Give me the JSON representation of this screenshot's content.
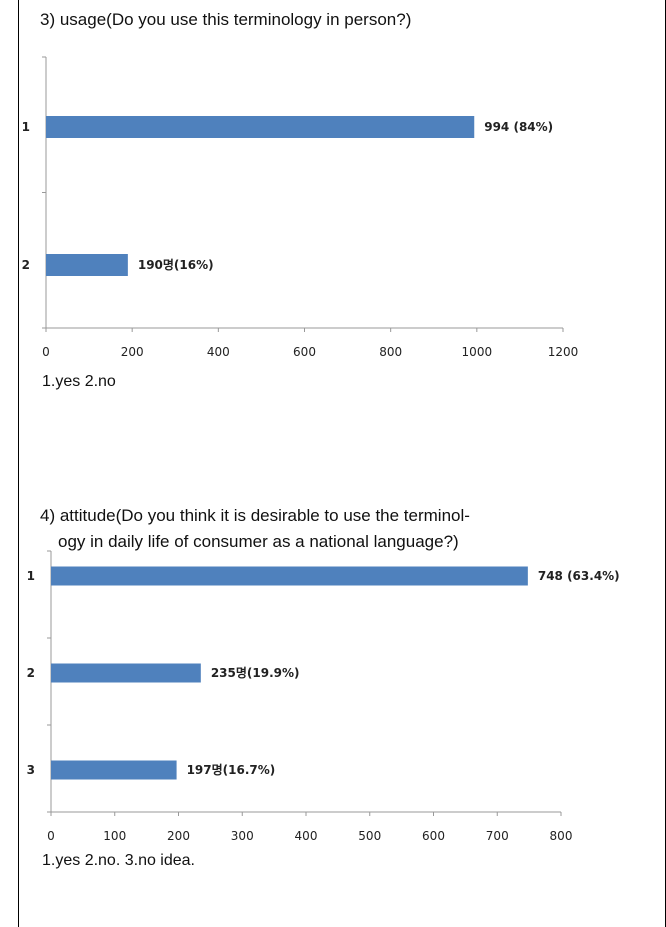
{
  "chart_data": [
    {
      "type": "bar",
      "title": "3) usage(Do you use this terminology in person?)",
      "categories": [
        "1",
        "2"
      ],
      "values": [
        994,
        190
      ],
      "data_labels": [
        "994 (84%)",
        "190명(16%)"
      ],
      "xlim": [
        0,
        1200
      ],
      "xticks": [
        "0",
        "200",
        "400",
        "600",
        "800",
        "1000",
        "1200"
      ],
      "bar_color": "#4F81BD",
      "footnote": "1.yes   2.no"
    },
    {
      "type": "bar",
      "title_lines": [
        "4) attitude(Do you think it is desirable to use the terminol-",
        "ogy in daily life of consumer as a national language?)"
      ],
      "categories": [
        "1",
        "2",
        "3"
      ],
      "values": [
        748,
        235,
        197
      ],
      "data_labels": [
        "748 (63.4%)",
        "235명(19.9%)",
        "197명(16.7%)"
      ],
      "xlim": [
        0,
        800
      ],
      "xticks": [
        "0",
        "100",
        "200",
        "300",
        "400",
        "500",
        "600",
        "700",
        "800"
      ],
      "bar_color": "#4F81BD",
      "footnote": "1.yes   2.no.   3.no idea."
    }
  ]
}
